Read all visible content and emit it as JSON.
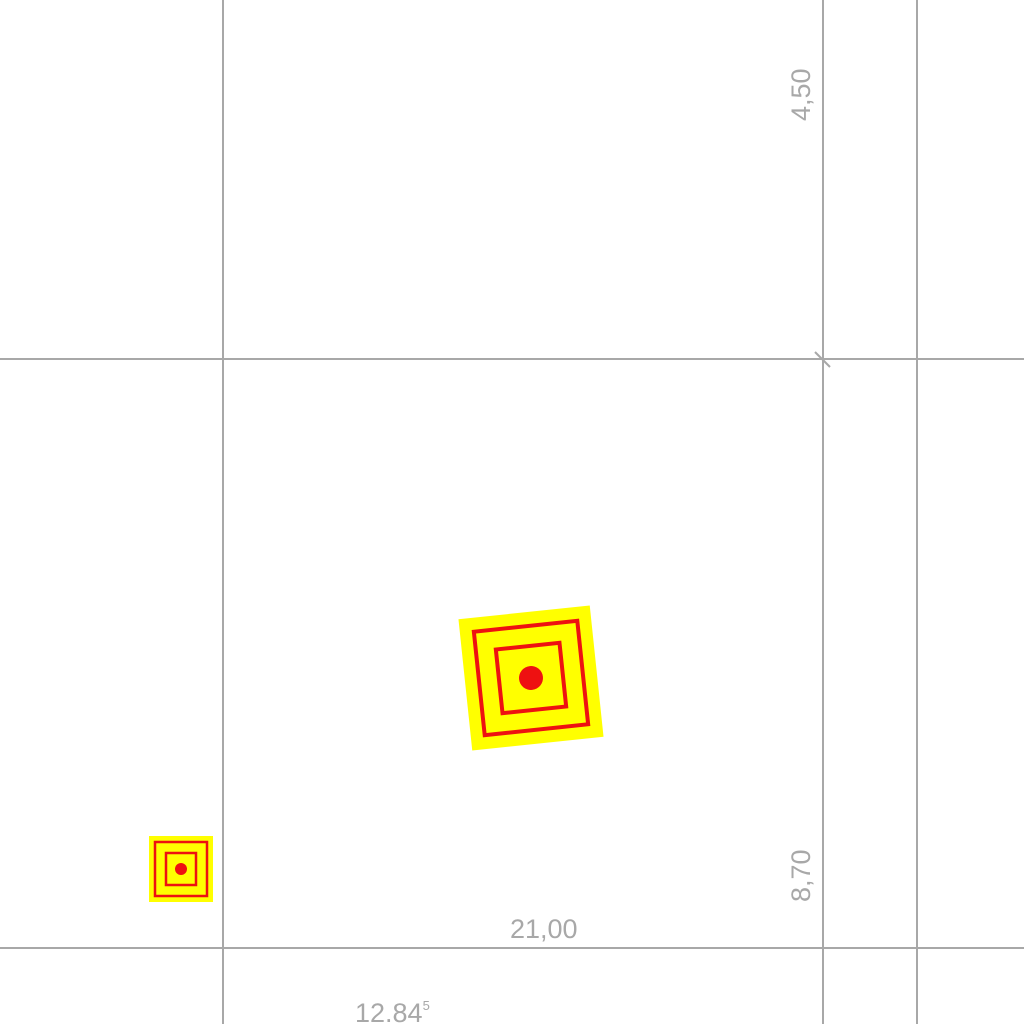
{
  "map": {
    "labels": {
      "top_right_dimension": "4,50",
      "bottom_right_dimension": "8,70",
      "bottom_dimension": "21,00",
      "parcel_number_main": "12.84",
      "parcel_number_sup": "5"
    },
    "colors": {
      "grid_line": "#a8a8a8",
      "marker_fill": "#ffff00",
      "marker_stroke": "#ee1111",
      "background": "#ffffff"
    },
    "markers": [
      {
        "name": "large-target-marker",
        "icon": "target-square-icon"
      },
      {
        "name": "small-target-marker",
        "icon": "target-square-icon"
      }
    ]
  }
}
